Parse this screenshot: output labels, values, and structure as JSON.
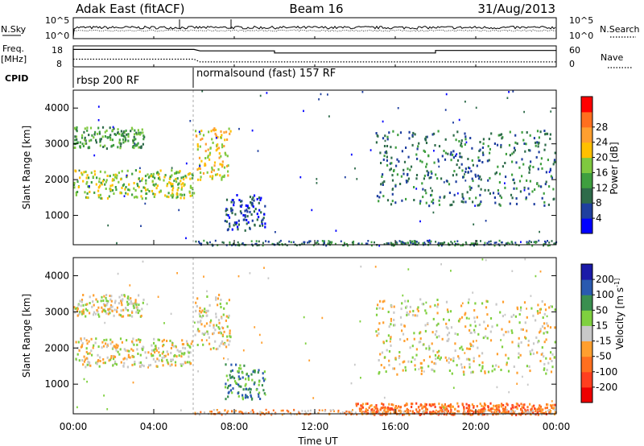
{
  "header": {
    "title": "Adak East (fitACF)",
    "beam": "Beam 16",
    "date": "31/Aug/2013"
  },
  "status_panel": {
    "nsky_label": "N.Sky",
    "nsearch_label": "N.Search",
    "freq_label_line1": "Freq.",
    "freq_label_line2": "[MHz]",
    "nave_label": "Nave",
    "cpid_label": "CPID",
    "noise_ticks": [
      "10^5",
      "10^0"
    ],
    "freq_ticks": [
      "18",
      "8"
    ],
    "nave_ticks": [
      "60",
      "0"
    ],
    "cpid_segments": [
      {
        "label": "rbsp 200 RF",
        "start_hour": 0
      },
      {
        "label": "normalsound (fast) 157 RF",
        "start_hour": 6
      }
    ],
    "freq_trace": [
      [
        0,
        16.3
      ],
      [
        6,
        16.3
      ],
      [
        6.3,
        15.6
      ],
      [
        10,
        15.6
      ],
      [
        10,
        14.6
      ],
      [
        18,
        14.6
      ],
      [
        18,
        15.8
      ],
      [
        24,
        15.8
      ]
    ],
    "nave_trace": [
      [
        0,
        22
      ],
      [
        6,
        22
      ],
      [
        6.3,
        14
      ],
      [
        24,
        14
      ]
    ]
  },
  "x_axis": {
    "label": "Time UT",
    "ticks": [
      "00:00",
      "04:00",
      "08:00",
      "12:00",
      "16:00",
      "20:00",
      "00:00"
    ]
  },
  "chart_data": [
    {
      "type": "heatmap",
      "panel": "power",
      "x_range_hours": [
        0,
        24
      ],
      "ylabel": "Slant Range [km]",
      "ylim": [
        180,
        4500
      ],
      "y_ticks": [
        1000,
        2000,
        3000,
        4000
      ],
      "colorbar": {
        "label": "Power [dB]",
        "ticks": [
          "4",
          "8",
          "12",
          "16",
          "20",
          "24",
          "28"
        ],
        "colors": [
          "#0000ff",
          "#1f3f9f",
          "#2e6b4a",
          "#3f9f3f",
          "#7fc93f",
          "#ffc000",
          "#ff9f2f",
          "#ff6f1f",
          "#ff0000"
        ]
      },
      "features": [
        {
          "name": "echo band upper",
          "hours": [
            0,
            3.5
          ],
          "range_km": [
            2900,
            3500
          ],
          "level": 3
        },
        {
          "name": "echo band lower",
          "hours": [
            0,
            6
          ],
          "range_km": [
            1500,
            2300
          ],
          "level": 4
        },
        {
          "name": "echo rising",
          "hours": [
            6,
            7.8
          ],
          "range_km": [
            2000,
            3500
          ],
          "level": 5
        },
        {
          "name": "echo midday",
          "hours": [
            7.5,
            9.5
          ],
          "range_km": [
            600,
            1600
          ],
          "level": 1
        },
        {
          "name": "echo evening",
          "hours": [
            15,
            24
          ],
          "range_km": [
            1300,
            3400
          ],
          "level": 2
        }
      ]
    },
    {
      "type": "heatmap",
      "panel": "velocity",
      "x_range_hours": [
        0,
        24
      ],
      "ylabel": "Slant Range [km]",
      "ylim": [
        180,
        4500
      ],
      "y_ticks": [
        1000,
        2000,
        3000,
        4000
      ],
      "colorbar": {
        "label": "Velocity [m s^-1]",
        "ticks": [
          "200",
          "100",
          "50",
          "15",
          "-15",
          "-50",
          "-100",
          "-200"
        ],
        "colors": [
          "#1a1aa8",
          "#2a5ab0",
          "#3a8f4f",
          "#7fd03f",
          "#c8c8c8",
          "#ff9f2f",
          "#ff6f1f",
          "#ff3f1f",
          "#ee0000"
        ]
      },
      "features": [
        {
          "name": "ground scatter upper",
          "hours": [
            0,
            3.5
          ],
          "range_km": [
            2900,
            3500
          ],
          "level": 4
        },
        {
          "name": "ground scatter lower",
          "hours": [
            0,
            6
          ],
          "range_km": [
            1500,
            2300
          ],
          "level": 4
        },
        {
          "name": "rising scatter",
          "hours": [
            6,
            7.8
          ],
          "range_km": [
            2000,
            3500
          ],
          "level": 4
        },
        {
          "name": "mixed flow",
          "hours": [
            7.5,
            9.5
          ],
          "range_km": [
            600,
            1600
          ],
          "level": 2
        },
        {
          "name": "near-range echoes",
          "hours": [
            14,
            24
          ],
          "range_km": [
            180,
            500
          ],
          "level": 6
        },
        {
          "name": "evening scatter",
          "hours": [
            15,
            24
          ],
          "range_km": [
            1300,
            3400
          ],
          "level": 4
        }
      ]
    }
  ]
}
